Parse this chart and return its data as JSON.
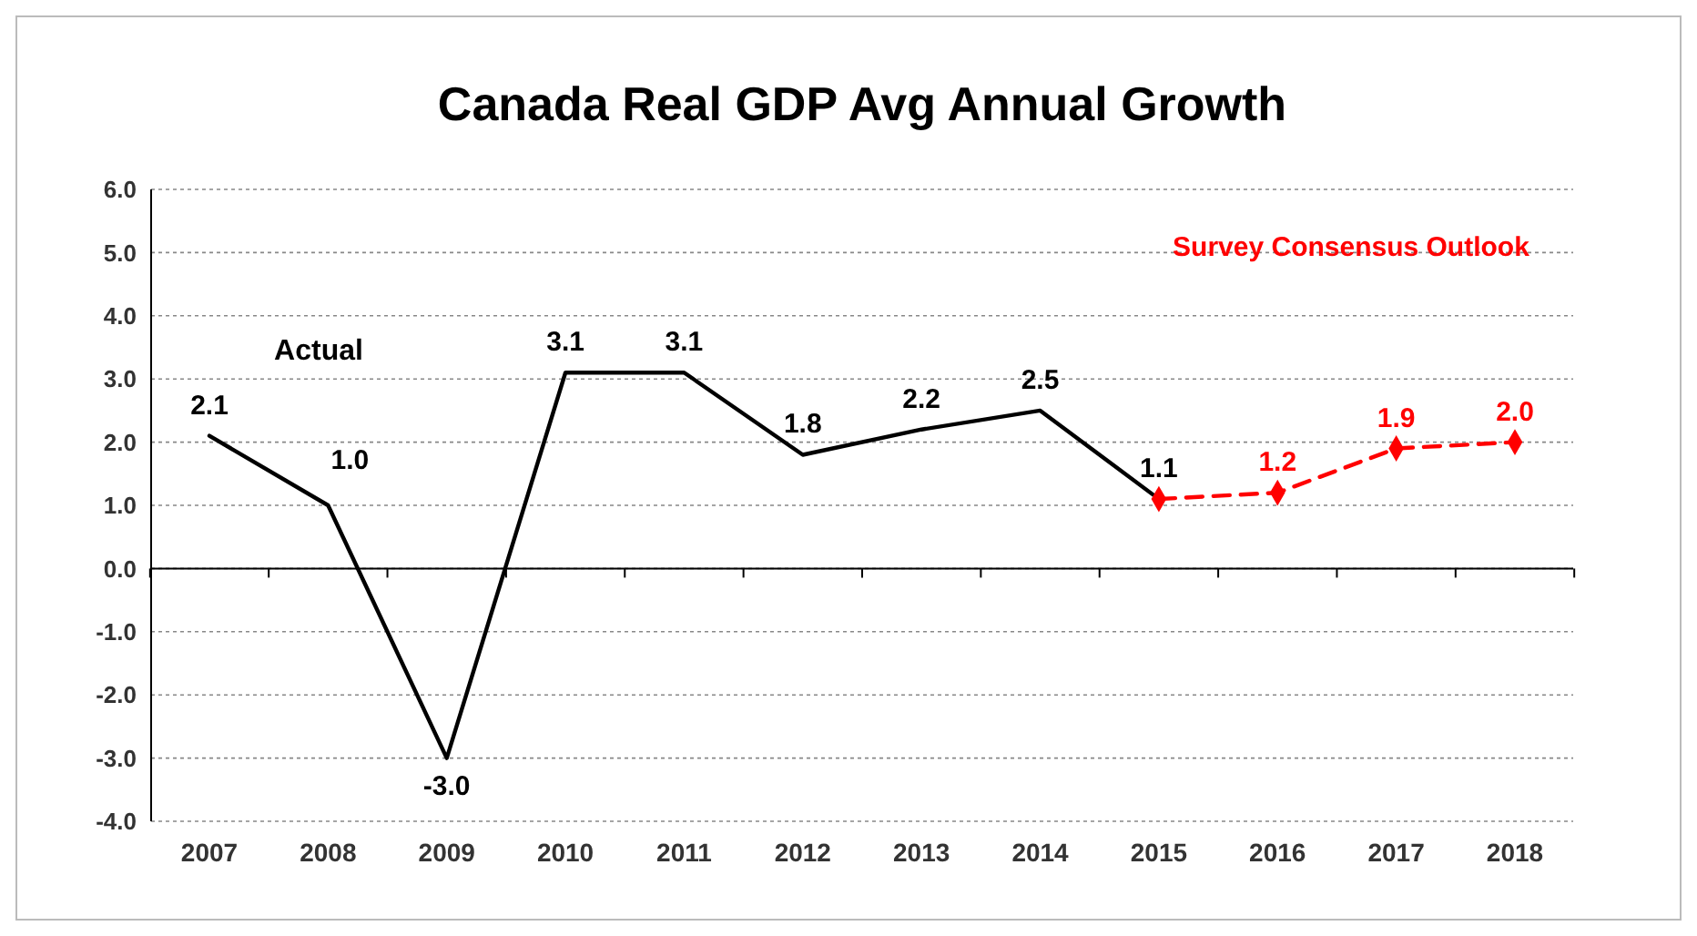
{
  "chart_data": {
    "type": "line",
    "title": "Canada Real GDP Avg Annual Growth",
    "categories": [
      "2007",
      "2008",
      "2009",
      "2010",
      "2011",
      "2012",
      "2013",
      "2014",
      "2015",
      "2016",
      "2017",
      "2018"
    ],
    "series": [
      {
        "name": "Actual",
        "color": "#000000",
        "marker": "none",
        "line_style": "solid",
        "values": [
          2.1,
          1.0,
          -3.0,
          3.1,
          3.1,
          1.8,
          2.2,
          2.5,
          1.1,
          null,
          null,
          null
        ],
        "value_labels": [
          "2.1",
          "1.0",
          "-3.0",
          "3.1",
          "3.1",
          "1.8",
          "2.2",
          "2.5",
          "1.1",
          null,
          null,
          null
        ]
      },
      {
        "name": "Survey Consensus Outlook",
        "color": "#ff0000",
        "marker": "diamond",
        "line_style": "dashed",
        "values": [
          null,
          null,
          null,
          null,
          null,
          null,
          null,
          null,
          1.1,
          1.2,
          1.9,
          2.0
        ],
        "value_labels": [
          null,
          null,
          null,
          null,
          null,
          null,
          null,
          null,
          null,
          "1.2",
          "1.9",
          "2.0"
        ]
      }
    ],
    "ylim": [
      -4,
      6
    ],
    "yticks": [
      {
        "value": -4,
        "label": "-4.0"
      },
      {
        "value": -3,
        "label": "-3.0"
      },
      {
        "value": -2,
        "label": "-2.0"
      },
      {
        "value": -1,
        "label": "-1.0"
      },
      {
        "value": 0,
        "label": "0.0"
      },
      {
        "value": 1,
        "label": "1.0"
      },
      {
        "value": 2,
        "label": "2.0"
      },
      {
        "value": 3,
        "label": "3.0"
      },
      {
        "value": 4,
        "label": "4.0"
      },
      {
        "value": 5,
        "label": "5.0"
      },
      {
        "value": 6,
        "label": "6.0"
      }
    ],
    "grid": "y"
  }
}
